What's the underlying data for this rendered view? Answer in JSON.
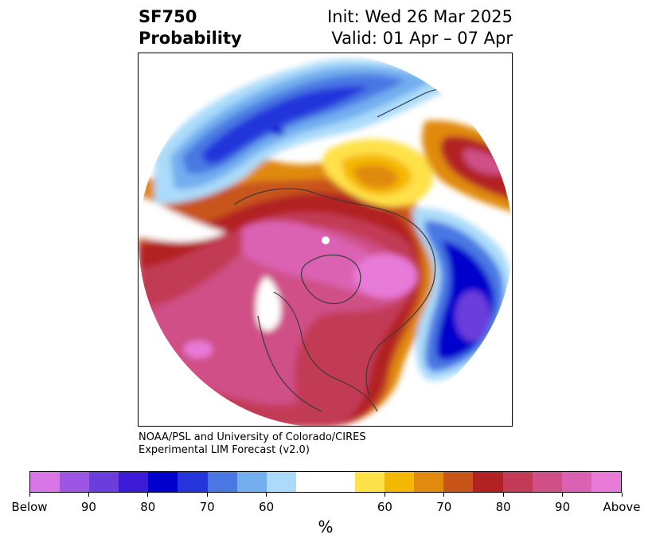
{
  "header": {
    "title_line1": "SF750",
    "title_line2": "Probability",
    "init": "Init: Wed 26 Mar 2025",
    "valid": "Valid: 01 Apr – 07 Apr"
  },
  "credit": {
    "line1": "NOAA/PSL and University of Colorado/CIRES",
    "line2": "Experimental LIM Forecast (v2.0)"
  },
  "colorbar": {
    "colors_below": [
      "#d876e8",
      "#9c56e3",
      "#6a3ddc",
      "#3b1bd5",
      "#0000cc",
      "#2435db",
      "#4a78e3",
      "#73aeee",
      "#aadbfa"
    ],
    "color_neutral": "#ffffff",
    "colors_above": [
      "#ffe14a",
      "#f5b800",
      "#e08a10",
      "#c8541a",
      "#b22222",
      "#c23a55",
      "#cf4f86",
      "#db62b3",
      "#e87ad8"
    ],
    "tick_labels": [
      "Below",
      "90",
      "80",
      "70",
      "60",
      "60",
      "70",
      "80",
      "90",
      "Above"
    ],
    "unit": "%"
  },
  "map": {
    "projection": "north-polar-stereographic",
    "field": "SF750 probability"
  }
}
